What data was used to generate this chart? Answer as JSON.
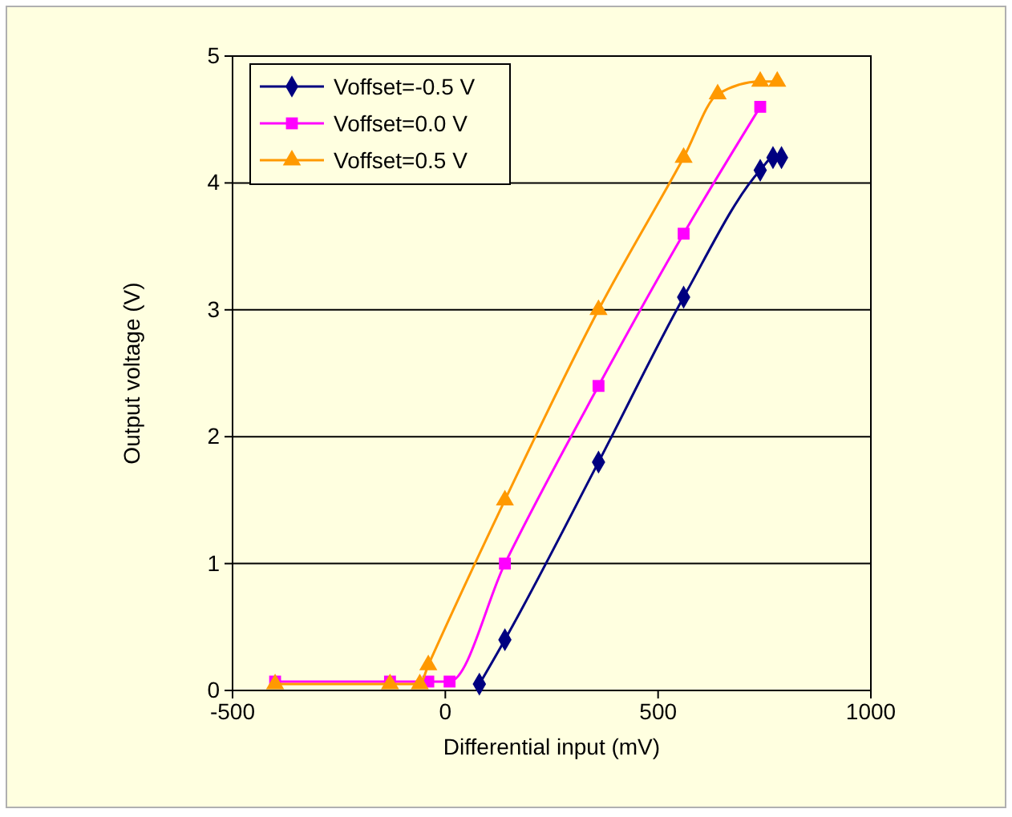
{
  "chart_data": {
    "type": "line",
    "xlabel": "Differential input (mV)",
    "ylabel": "Output voltage (V)",
    "xlim": [
      -500,
      1000
    ],
    "xticks": [
      -500,
      0,
      500,
      1000
    ],
    "ylim": [
      0,
      5
    ],
    "yticks": [
      0,
      1,
      2,
      3,
      4,
      5
    ],
    "grid": "y",
    "legend": "top left",
    "series": [
      {
        "name": "Voffset=-0.5 V",
        "color": "#000080",
        "marker": "diamond",
        "x": [
          80,
          140,
          360,
          560,
          740,
          770,
          790
        ],
        "values": [
          0.05,
          0.4,
          1.8,
          3.1,
          4.1,
          4.2,
          4.2
        ]
      },
      {
        "name": "Voffset=0.0 V",
        "color": "#ff00ff",
        "marker": "square",
        "x": [
          -400,
          -130,
          -40,
          10,
          140,
          360,
          560,
          740
        ],
        "values": [
          0.07,
          0.07,
          0.07,
          0.07,
          1.0,
          2.4,
          3.6,
          4.6
        ]
      },
      {
        "name": "Voffset=0.5 V",
        "color": "#ff9900",
        "marker": "triangle",
        "x": [
          -400,
          -130,
          -60,
          -40,
          140,
          360,
          560,
          640,
          740,
          780
        ],
        "values": [
          0.05,
          0.05,
          0.05,
          0.2,
          1.5,
          3.0,
          4.2,
          4.7,
          4.8,
          4.8
        ]
      }
    ]
  }
}
